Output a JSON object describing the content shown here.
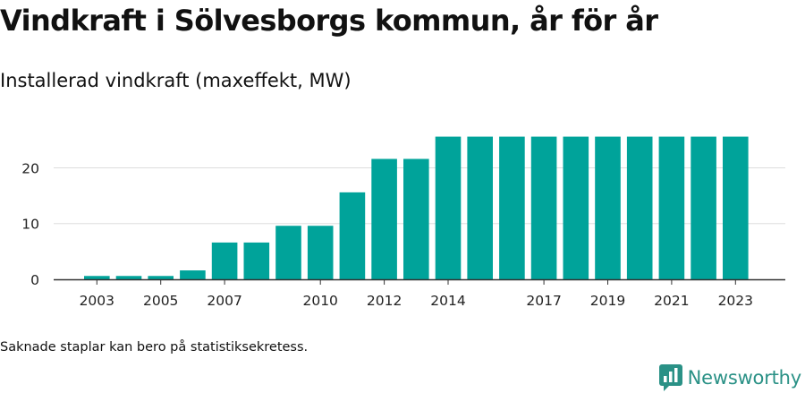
{
  "title": "Vindkraft i Sölvesborgs kommun, år för år",
  "subtitle": "Installerad vindkraft (maxeffekt, MW)",
  "footnote": "Saknade staplar kan bero på statistiksekretess.",
  "logo": {
    "text": "Newsworthy",
    "icon": "newsworthy-logo-icon",
    "color": "#2a9186"
  },
  "colors": {
    "bar": "#00a39a",
    "grid": "#dddddd",
    "axis": "#333333",
    "text": "#222222"
  },
  "chart_data": {
    "type": "bar",
    "categories": [
      "2003",
      "2004",
      "2005",
      "2006",
      "2007",
      "2008",
      "2009",
      "2010",
      "2011",
      "2012",
      "2013",
      "2014",
      "2015",
      "2016",
      "2017",
      "2018",
      "2019",
      "2020",
      "2021",
      "2022",
      "2023"
    ],
    "values": [
      0.6,
      0.6,
      0.6,
      1.6,
      6.6,
      6.6,
      9.6,
      9.6,
      15.6,
      21.6,
      21.6,
      25.6,
      25.6,
      25.6,
      25.6,
      25.6,
      25.6,
      25.6,
      25.6,
      25.6,
      25.6
    ],
    "xtick_labels": [
      "2003",
      "2005",
      "2007",
      "2010",
      "2012",
      "2014",
      "2017",
      "2019",
      "2021",
      "2023"
    ],
    "yticks": [
      0,
      10,
      20
    ],
    "ylim": [
      0,
      27
    ],
    "xlabel": "",
    "ylabel": "",
    "grid": true,
    "legend": "none"
  }
}
